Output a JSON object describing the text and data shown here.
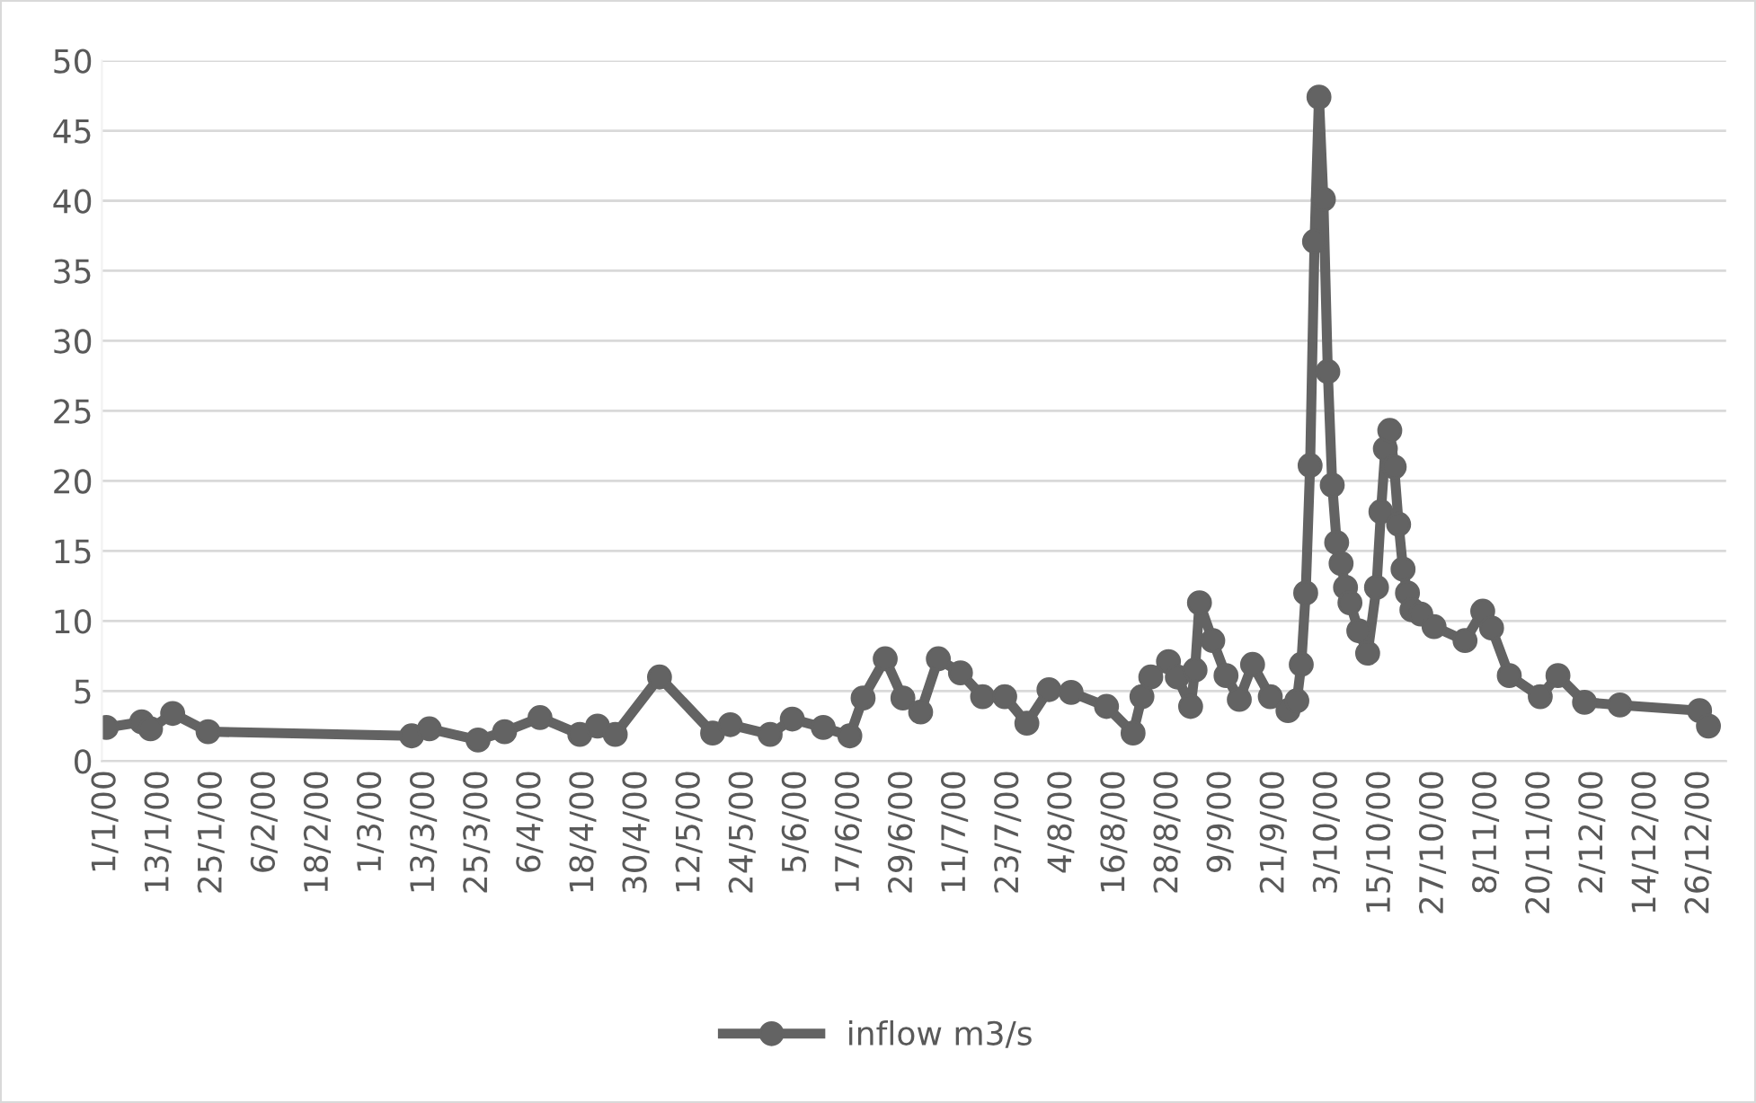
{
  "chart_data": {
    "type": "line",
    "xlim": [
      "1999-12-31",
      "2001-01-01"
    ],
    "ylim": [
      0,
      50
    ],
    "yticks": [
      0,
      5,
      10,
      15,
      20,
      25,
      30,
      35,
      40,
      45,
      50
    ],
    "xticks": [
      {
        "value": "2000-01-01",
        "label": "1/1/00"
      },
      {
        "value": "2000-01-13",
        "label": "13/1/00"
      },
      {
        "value": "2000-01-25",
        "label": "25/1/00"
      },
      {
        "value": "2000-02-06",
        "label": "6/2/00"
      },
      {
        "value": "2000-02-18",
        "label": "18/2/00"
      },
      {
        "value": "2000-03-01",
        "label": "1/3/00"
      },
      {
        "value": "2000-03-13",
        "label": "13/3/00"
      },
      {
        "value": "2000-03-25",
        "label": "25/3/00"
      },
      {
        "value": "2000-04-06",
        "label": "6/4/00"
      },
      {
        "value": "2000-04-18",
        "label": "18/4/00"
      },
      {
        "value": "2000-04-30",
        "label": "30/4/00"
      },
      {
        "value": "2000-05-12",
        "label": "12/5/00"
      },
      {
        "value": "2000-05-24",
        "label": "24/5/00"
      },
      {
        "value": "2000-06-05",
        "label": "5/6/00"
      },
      {
        "value": "2000-06-17",
        "label": "17/6/00"
      },
      {
        "value": "2000-06-29",
        "label": "29/6/00"
      },
      {
        "value": "2000-07-11",
        "label": "11/7/00"
      },
      {
        "value": "2000-07-23",
        "label": "23/7/00"
      },
      {
        "value": "2000-08-04",
        "label": "4/8/00"
      },
      {
        "value": "2000-08-16",
        "label": "16/8/00"
      },
      {
        "value": "2000-08-28",
        "label": "28/8/00"
      },
      {
        "value": "2000-09-09",
        "label": "9/9/00"
      },
      {
        "value": "2000-09-21",
        "label": "21/9/00"
      },
      {
        "value": "2000-10-03",
        "label": "3/10/00"
      },
      {
        "value": "2000-10-15",
        "label": "15/10/00"
      },
      {
        "value": "2000-10-27",
        "label": "27/10/00"
      },
      {
        "value": "2000-11-08",
        "label": "8/11/00"
      },
      {
        "value": "2000-11-20",
        "label": "20/11/00"
      },
      {
        "value": "2000-12-02",
        "label": "2/12/00"
      },
      {
        "value": "2000-12-14",
        "label": "14/12/00"
      },
      {
        "value": "2000-12-26",
        "label": "26/12/00"
      }
    ],
    "grid": "y",
    "legend": "bottom",
    "marker": "circle",
    "line_style": "solid",
    "series": [
      {
        "name": "inflow m3/s",
        "color": "#636363",
        "x": [
          "2000-01-01",
          "2000-01-09",
          "2000-01-11",
          "2000-01-16",
          "2000-01-24",
          "2000-03-10",
          "2000-03-14",
          "2000-03-25",
          "2000-03-31",
          "2000-04-08",
          "2000-04-17",
          "2000-04-21",
          "2000-04-25",
          "2000-05-05",
          "2000-05-17",
          "2000-05-21",
          "2000-05-30",
          "2000-06-04",
          "2000-06-11",
          "2000-06-17",
          "2000-06-20",
          "2000-06-25",
          "2000-06-29",
          "2000-07-03",
          "2000-07-07",
          "2000-07-12",
          "2000-07-17",
          "2000-07-22",
          "2000-07-27",
          "2000-08-01",
          "2000-08-06",
          "2000-08-14",
          "2000-08-20",
          "2000-08-22",
          "2000-08-24",
          "2000-08-28",
          "2000-08-30",
          "2000-09-02",
          "2000-09-03",
          "2000-09-04",
          "2000-09-07",
          "2000-09-10",
          "2000-09-13",
          "2000-09-16",
          "2000-09-20",
          "2000-09-24",
          "2000-09-26",
          "2000-09-27",
          "2000-09-28",
          "2000-09-29",
          "2000-09-30",
          "2000-10-01",
          "2000-10-02",
          "2000-10-03",
          "2000-10-04",
          "2000-10-05",
          "2000-10-06",
          "2000-10-07",
          "2000-10-08",
          "2000-10-10",
          "2000-10-12",
          "2000-10-14",
          "2000-10-15",
          "2000-10-16",
          "2000-10-17",
          "2000-10-18",
          "2000-10-19",
          "2000-10-20",
          "2000-10-21",
          "2000-10-22",
          "2000-10-24",
          "2000-10-27",
          "2000-11-03",
          "2000-11-07",
          "2000-11-09",
          "2000-11-13",
          "2000-11-20",
          "2000-11-24",
          "2000-11-30",
          "2000-12-08",
          "2000-12-26",
          "2000-12-28"
        ],
        "values": [
          2.4,
          2.8,
          2.3,
          3.4,
          2.1,
          1.8,
          2.3,
          1.5,
          2.1,
          3.1,
          1.9,
          2.5,
          1.9,
          6.0,
          2.0,
          2.6,
          1.9,
          3.0,
          2.4,
          1.8,
          4.5,
          7.3,
          4.5,
          3.5,
          7.3,
          6.3,
          4.6,
          4.6,
          2.7,
          5.1,
          4.9,
          3.9,
          2.0,
          4.6,
          6.0,
          7.1,
          6.0,
          3.9,
          6.5,
          11.3,
          8.6,
          6.1,
          4.4,
          6.9,
          4.6,
          3.6,
          4.3,
          6.9,
          12.0,
          21.1,
          37.1,
          47.4,
          40.1,
          27.8,
          19.7,
          15.6,
          14.1,
          12.4,
          11.3,
          9.3,
          7.7,
          12.4,
          17.8,
          22.3,
          23.6,
          21.0,
          16.9,
          13.7,
          12.0,
          10.8,
          10.5,
          9.6,
          8.6,
          10.7,
          9.5,
          6.1,
          4.6,
          6.1,
          4.2,
          4.0,
          3.6,
          2.5
        ]
      }
    ]
  }
}
